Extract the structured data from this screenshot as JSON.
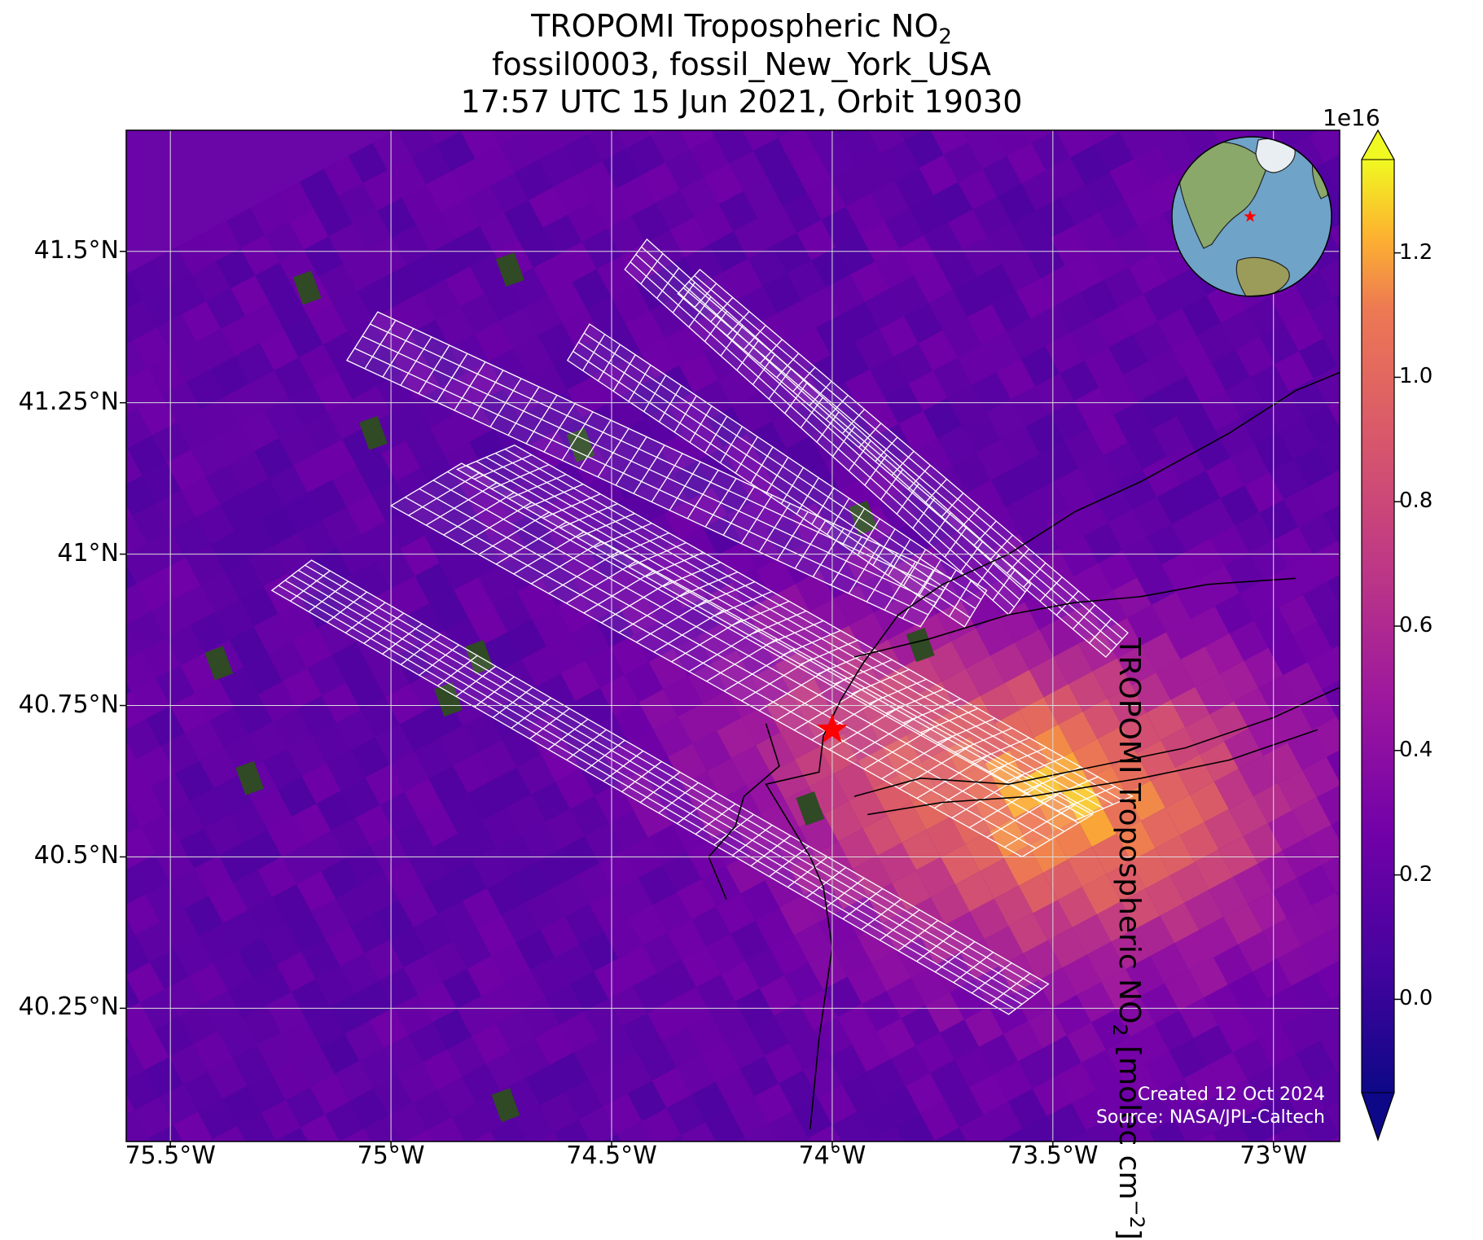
{
  "title": {
    "line1_main": "TROPOMI Tropospheric NO",
    "line1_sub": "2",
    "line2": "fossil0003, fossil_New_York_USA",
    "line3": "17:57 UTC 15 Jun 2021, Orbit 19030"
  },
  "map": {
    "lon_range": [
      -75.6,
      -72.85
    ],
    "lat_range": [
      40.03,
      41.7
    ],
    "lon_ticks": [
      {
        "value": -75.5,
        "label": "75.5°W"
      },
      {
        "value": -75.0,
        "label": "75°W"
      },
      {
        "value": -74.5,
        "label": "74.5°W"
      },
      {
        "value": -74.0,
        "label": "74°W"
      },
      {
        "value": -73.5,
        "label": "73.5°W"
      },
      {
        "value": -73.0,
        "label": "73°W"
      }
    ],
    "lat_ticks": [
      {
        "value": 41.5,
        "label": "41.5°N"
      },
      {
        "value": 41.25,
        "label": "41.25°N"
      },
      {
        "value": 41.0,
        "label": "41°N"
      },
      {
        "value": 40.75,
        "label": "40.75°N"
      },
      {
        "value": 40.5,
        "label": "40.5°N"
      },
      {
        "value": 40.25,
        "label": "40.25°N"
      }
    ],
    "target": {
      "lon": -74.0,
      "lat": 40.71,
      "marker": "red-star",
      "color": "#ff0000"
    },
    "gridline_color": "#dddddd"
  },
  "colorbar": {
    "colormap": "plasma",
    "min": -0.15,
    "max": 1.35,
    "extend": "both",
    "exponent_label": "1e16",
    "ticks": [
      {
        "value": 0.0,
        "label": "0.0"
      },
      {
        "value": 0.2,
        "label": "0.2"
      },
      {
        "value": 0.4,
        "label": "0.4"
      },
      {
        "value": 0.6,
        "label": "0.6"
      },
      {
        "value": 0.8,
        "label": "0.8"
      },
      {
        "value": 1.0,
        "label": "1.0"
      },
      {
        "value": 1.2,
        "label": "1.2"
      }
    ],
    "label_main": "TROPOMI Tropospheric NO",
    "label_sub": "2",
    "label_unit": " [molec cm",
    "label_sup": "−2",
    "label_close": "]"
  },
  "inset_globe": {
    "marker": "red-star",
    "ocean_color": "#6fa3c8",
    "land_color": "#8aa86a"
  },
  "credits": {
    "created": "Created 12 Oct 2024",
    "source": "Source: NASA/JPL-Caltech"
  }
}
